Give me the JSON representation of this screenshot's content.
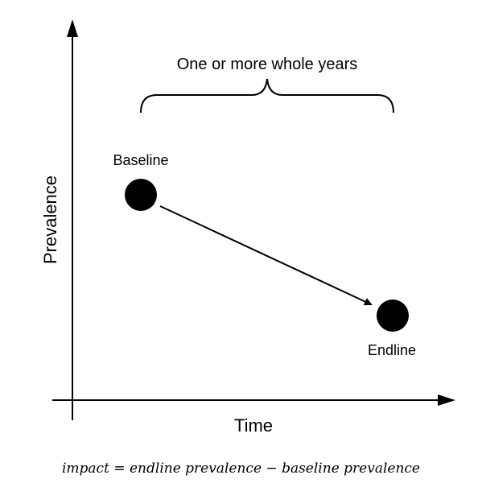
{
  "diagram": {
    "bracket_label": "One or more whole years",
    "x_axis_label": "Time",
    "y_axis_label": "Prevalence",
    "start_point_label": "Baseline",
    "end_point_label": "Endline"
  },
  "formula": {
    "lhs": "impact",
    "equals": "=",
    "term1": "endline prevalence",
    "minus": "−",
    "term2": "baseline prevalence"
  }
}
